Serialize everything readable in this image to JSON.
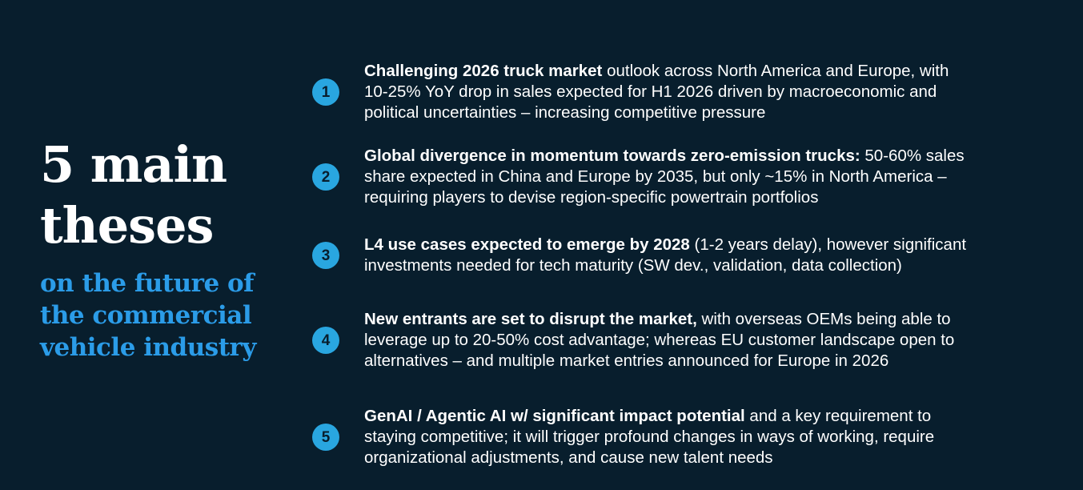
{
  "slide": {
    "title": "5 main\ntheses",
    "subtitle": "on the future of\nthe commercial\nvehicle industry"
  },
  "theses": [
    {
      "number": "1",
      "lead": "Challenging 2026 truck market",
      "rest": " outlook across North America and Europe, with\n10-25% YoY drop in sales expected for H1 2026 driven by macroeconomic and\npolitical uncertainties – increasing competitive pressure"
    },
    {
      "number": "2",
      "lead": "Global divergence in momentum towards zero-emission trucks:",
      "rest": " 50-60% sales\nshare expected in China and Europe by 2035, but only ~15% in North America –\nrequiring players to devise region-specific powertrain portfolios"
    },
    {
      "number": "3",
      "lead": "L4 use cases expected to emerge by 2028",
      "rest": " (1-2 years delay), however significant\ninvestments needed for tech maturity (SW dev., validation, data collection)"
    },
    {
      "number": "4",
      "lead": "New entrants are set to disrupt the market,",
      "rest": " with overseas OEMs being able to\nleverage up to 20-50% cost advantage; whereas EU customer landscape open to\nalternatives – and multiple market entries announced for Europe in 2026"
    },
    {
      "number": "5",
      "lead": "GenAI / Agentic AI w/ significant impact potential",
      "rest": " and a key requirement to\nstaying competitive; it will trigger profound changes in ways of working, require\norganizational adjustments, and cause new talent needs"
    }
  ],
  "colors": {
    "background": "#081E2D",
    "badge_blue": "#29A6E0",
    "subtitle_blue": "#2B9CE8",
    "body_text": "#FFFFFF"
  }
}
